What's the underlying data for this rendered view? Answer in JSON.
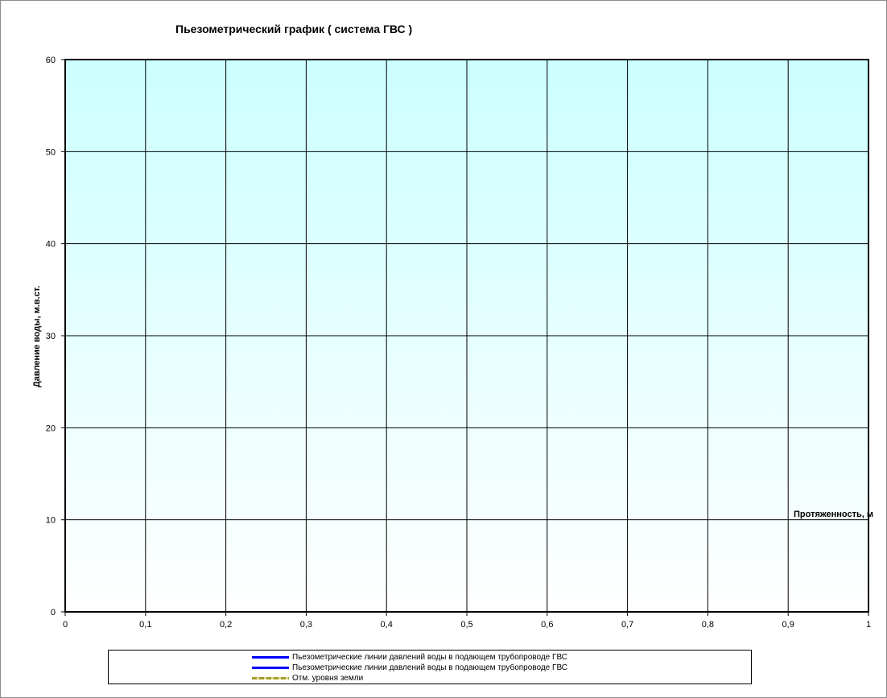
{
  "chart_data": {
    "type": "line",
    "title": "Пьезометрический график ( система ГВС )",
    "xlabel": "Протяженность, м",
    "ylabel": "Давление воды, м.в.ст.",
    "xlim": [
      0,
      1
    ],
    "ylim": [
      0,
      60
    ],
    "x_ticks": [
      "0",
      "0,1",
      "0,2",
      "0,3",
      "0,4",
      "0,5",
      "0,6",
      "0,7",
      "0,8",
      "0,9",
      "1"
    ],
    "y_ticks": [
      "0",
      "10",
      "20",
      "30",
      "40",
      "50",
      "60"
    ],
    "grid": true,
    "legend_position": "bottom",
    "background_gradient": {
      "top": "#ccffff",
      "bottom": "#ffffff"
    },
    "series": [
      {
        "name": "Пьезометрические линии давлений воды в подающем трубопроводе ГВС",
        "color": "#0000ff",
        "style": "solid",
        "points": []
      },
      {
        "name": "Пьезометрические линии давлений воды в подающем трубопроводе ГВС",
        "color": "#0000ff",
        "style": "solid",
        "points": []
      },
      {
        "name": "Отм. уровня земли",
        "color": "#a89a2c",
        "style": "dashed",
        "points": []
      }
    ]
  }
}
